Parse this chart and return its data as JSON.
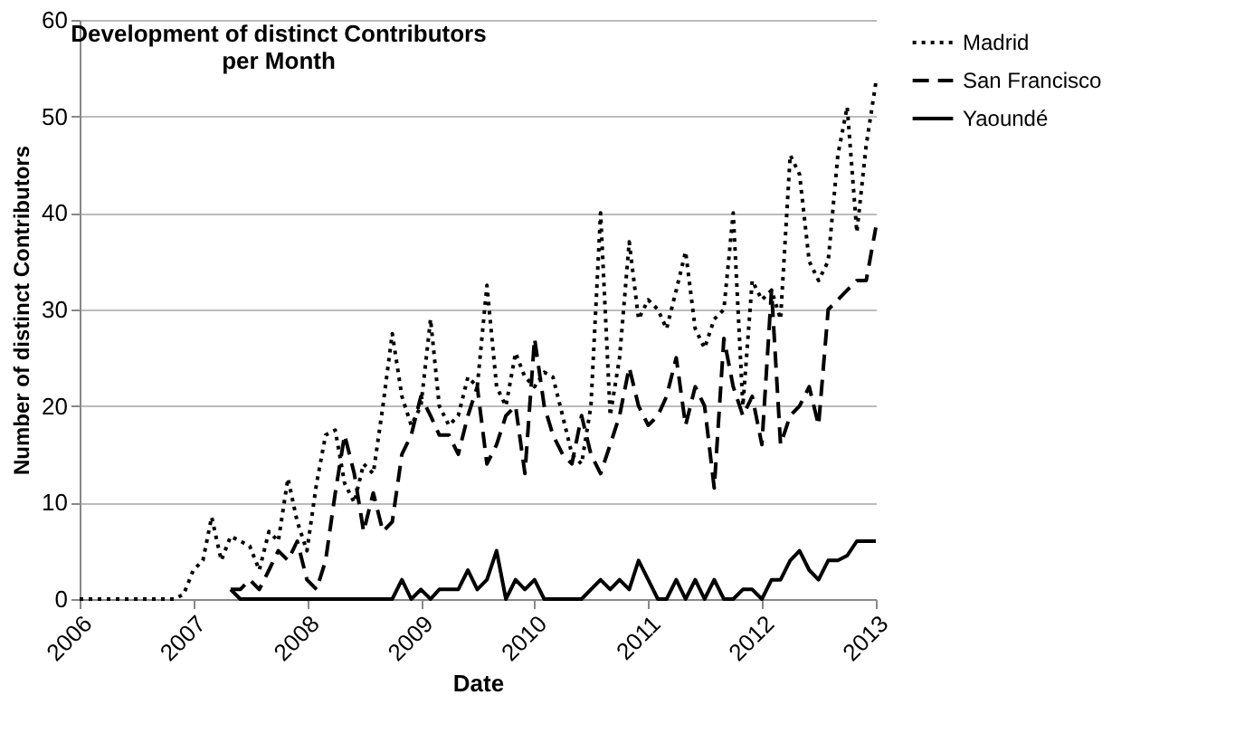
{
  "chart_data": {
    "type": "line",
    "title": "Development of distinct Contributors\nper Month",
    "xlabel": "Date",
    "ylabel": "Number of distinct Contributors",
    "x": [
      "2006-01",
      "2006-02",
      "2006-03",
      "2006-04",
      "2006-05",
      "2006-06",
      "2006-07",
      "2006-08",
      "2006-09",
      "2006-10",
      "2006-11",
      "2006-12",
      "2007-01",
      "2007-02",
      "2007-03",
      "2007-04",
      "2007-05",
      "2007-06",
      "2007-07",
      "2007-08",
      "2007-09",
      "2007-10",
      "2007-11",
      "2007-12",
      "2008-01",
      "2008-02",
      "2008-03",
      "2008-04",
      "2008-05",
      "2008-06",
      "2008-07",
      "2008-08",
      "2008-09",
      "2008-10",
      "2008-11",
      "2008-12",
      "2009-01",
      "2009-02",
      "2009-03",
      "2009-04",
      "2009-05",
      "2009-06",
      "2009-07",
      "2009-08",
      "2009-09",
      "2009-10",
      "2009-11",
      "2009-12",
      "2010-01",
      "2010-02",
      "2010-03",
      "2010-04",
      "2010-05",
      "2010-06",
      "2010-07",
      "2010-08",
      "2010-09",
      "2010-10",
      "2010-11",
      "2010-12",
      "2011-01",
      "2011-02",
      "2011-03",
      "2011-04",
      "2011-05",
      "2011-06",
      "2011-07",
      "2011-08",
      "2011-09",
      "2011-10",
      "2011-11",
      "2011-12",
      "2012-01",
      "2012-02",
      "2012-03",
      "2012-04",
      "2012-05",
      "2012-06",
      "2012-07",
      "2012-08",
      "2012-09",
      "2012-10",
      "2012-11",
      "2012-12",
      "2013-01"
    ],
    "series": [
      {
        "name": "Madrid",
        "color": "#000000",
        "line_style": "dotted",
        "values": [
          0,
          0,
          0,
          0,
          0,
          0,
          0,
          0,
          0,
          0,
          0,
          0.5,
          3,
          4,
          8.5,
          4,
          6.5,
          6,
          5.5,
          3,
          7,
          6,
          12.5,
          8,
          5,
          12,
          17,
          17.5,
          12,
          10,
          14,
          13,
          20,
          27.5,
          21,
          18,
          20,
          29,
          20,
          18,
          19,
          23,
          22,
          32.5,
          22,
          20,
          25.5,
          23,
          22,
          23.5,
          23,
          19,
          15,
          14,
          20,
          40,
          19,
          25,
          37,
          29,
          31,
          30,
          28,
          32,
          36,
          28,
          26,
          29,
          30,
          40,
          20,
          33,
          31,
          32,
          29,
          46,
          44,
          35,
          33,
          35,
          46,
          51,
          38,
          47,
          53.5
        ]
      },
      {
        "name": "San Francisco",
        "color": "#000000",
        "line_style": "dashed",
        "values": [
          null,
          null,
          null,
          null,
          null,
          null,
          null,
          null,
          null,
          null,
          null,
          null,
          null,
          null,
          null,
          null,
          1,
          1,
          2,
          1,
          3,
          5,
          4,
          6,
          2,
          1,
          4,
          11,
          17,
          13,
          7,
          11,
          7,
          8,
          15,
          17,
          21,
          19,
          17,
          17,
          15,
          19,
          22,
          14,
          16,
          19,
          20,
          13,
          27,
          20,
          17,
          15,
          14,
          19,
          15,
          13,
          16,
          19,
          24,
          20,
          18,
          19,
          21,
          25,
          18,
          22,
          20,
          11.5,
          27,
          22,
          19,
          21,
          16,
          32,
          16,
          19,
          20,
          22,
          18,
          30,
          31,
          32,
          33,
          33,
          38.5
        ]
      },
      {
        "name": "Yaoundé",
        "color": "#000000",
        "line_style": "solid",
        "values": [
          null,
          null,
          null,
          null,
          null,
          null,
          null,
          null,
          null,
          null,
          null,
          null,
          null,
          null,
          null,
          null,
          1,
          0,
          0,
          0,
          0,
          0,
          0,
          0,
          0,
          0,
          0,
          0,
          0,
          0,
          0,
          0,
          0,
          0,
          2,
          0,
          1,
          0,
          1,
          1,
          1,
          3,
          1,
          2,
          5,
          0,
          2,
          1,
          2,
          0,
          0,
          0,
          0,
          0,
          1,
          2,
          1,
          2,
          1,
          4,
          2,
          0,
          0,
          2,
          0,
          2,
          0,
          2,
          0,
          0,
          1,
          1,
          0,
          2,
          2,
          4,
          5,
          3,
          2,
          4,
          4,
          4.5,
          6,
          6,
          6
        ]
      }
    ],
    "xlim": [
      "2006",
      "2013"
    ],
    "xticks": [
      "2006",
      "2007",
      "2008",
      "2009",
      "2010",
      "2011",
      "2012",
      "2013"
    ],
    "ylim": [
      0,
      60
    ],
    "yticks": [
      0,
      10,
      20,
      30,
      40,
      50,
      60
    ],
    "grid": "y",
    "legend": "right",
    "marker": "none"
  }
}
